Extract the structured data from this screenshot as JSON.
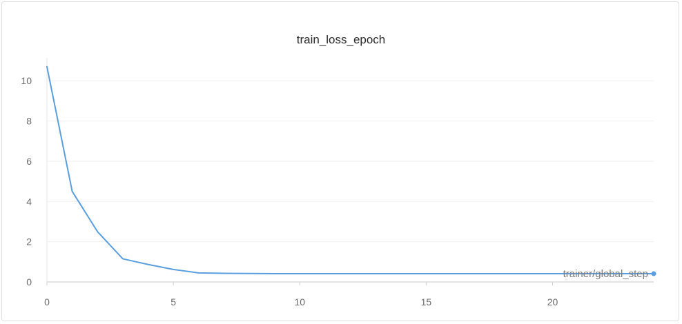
{
  "chart_data": {
    "type": "line",
    "title": "train_loss_epoch",
    "xlabel": "",
    "ylabel": "",
    "xlim": [
      0,
      24
    ],
    "ylim": [
      0,
      11
    ],
    "x_ticks": [
      0,
      5,
      10,
      15,
      20
    ],
    "y_ticks": [
      0,
      2,
      4,
      6,
      8,
      10
    ],
    "grid": true,
    "series": [
      {
        "name": "trainer/global_step",
        "color": "#5b9ee0",
        "x": [
          0,
          1,
          2,
          3,
          4,
          5,
          6,
          7,
          8,
          9,
          10,
          11,
          12,
          13,
          14,
          15,
          16,
          17,
          18,
          19,
          20,
          21,
          22,
          23,
          24
        ],
        "y": [
          10.7,
          4.5,
          2.5,
          1.15,
          0.87,
          0.62,
          0.45,
          0.43,
          0.42,
          0.41,
          0.41,
          0.41,
          0.41,
          0.41,
          0.41,
          0.41,
          0.41,
          0.41,
          0.41,
          0.41,
          0.41,
          0.41,
          0.41,
          0.41,
          0.41
        ]
      }
    ]
  }
}
